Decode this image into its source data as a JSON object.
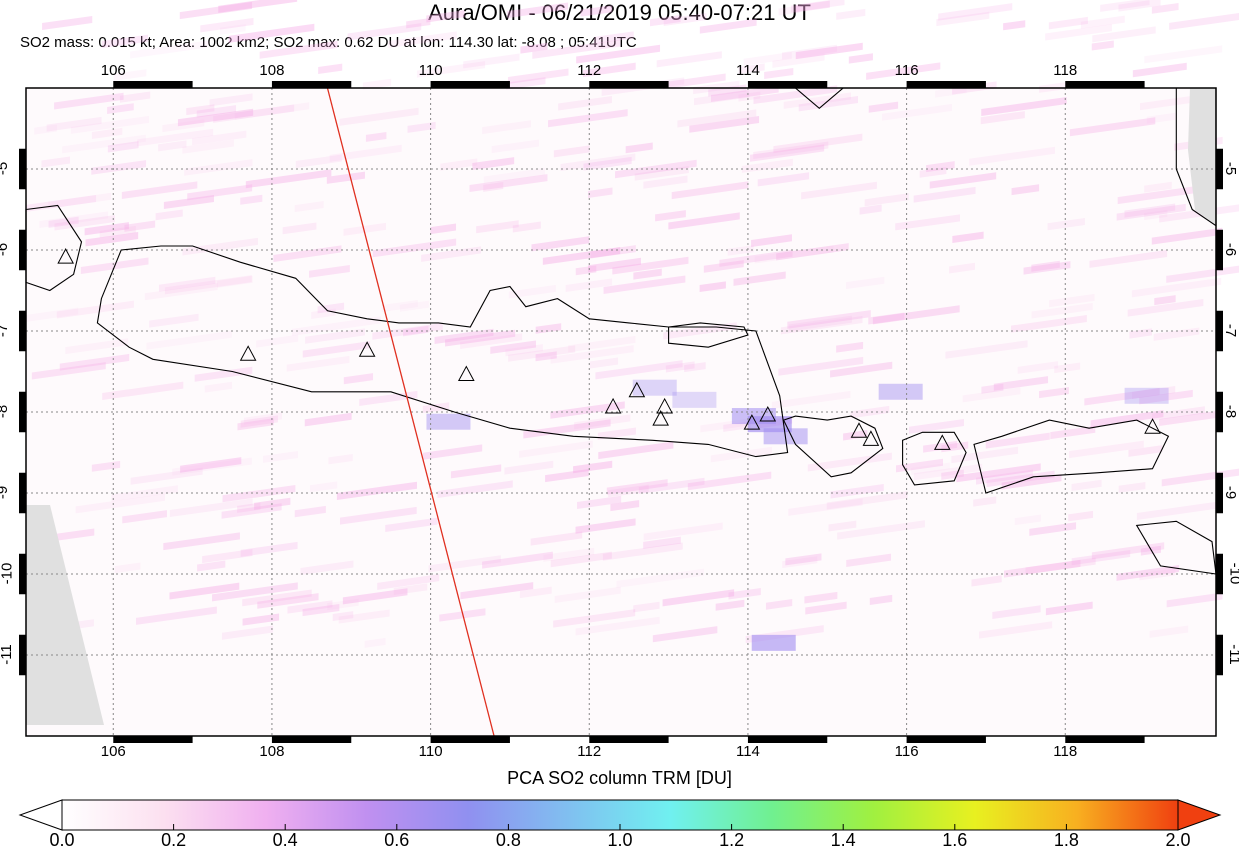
{
  "header": {
    "title": "Aura/OMI - 06/21/2019 05:40-07:21 UT",
    "stats": {
      "so2_mass": "SO2 mass: 0.015 kt; Area: 1002 km2; SO2 max: 0.62 DU at lon: 114.30 lat: -8.08 ; 05:41UTC"
    }
  },
  "map": {
    "lon_range": [
      104.9,
      119.9
    ],
    "lat_range": [
      -12.0,
      -4.0
    ],
    "lon_ticks": [
      "106",
      "108",
      "110",
      "112",
      "114",
      "116",
      "118"
    ],
    "lat_ticks": [
      "-5",
      "-6",
      "-7",
      "-8",
      "-9",
      "-10",
      "-11"
    ],
    "grid": "dotted",
    "orbit_track": {
      "color": "#e03020",
      "from": [
        108.7,
        -4.0
      ],
      "to": [
        110.8,
        -12.0
      ]
    },
    "volcano_markers": [
      [
        105.4,
        -6.1
      ],
      [
        107.7,
        -7.3
      ],
      [
        109.2,
        -7.25
      ],
      [
        110.45,
        -7.55
      ],
      [
        112.3,
        -7.95
      ],
      [
        112.6,
        -7.75
      ],
      [
        112.95,
        -7.95
      ],
      [
        112.9,
        -8.1
      ],
      [
        114.05,
        -8.15
      ],
      [
        114.25,
        -8.05
      ],
      [
        115.4,
        -8.25
      ],
      [
        115.55,
        -8.35
      ],
      [
        116.45,
        -8.4
      ],
      [
        119.1,
        -8.2
      ]
    ],
    "colors": {
      "coast": "#000000",
      "nodata": "#e0e0e0",
      "grid": "#888888"
    }
  },
  "colorbar": {
    "title": "PCA SO2 column TRM [DU]",
    "labels": [
      "0.0",
      "0.2",
      "0.4",
      "0.6",
      "0.8",
      "1.0",
      "1.2",
      "1.4",
      "1.6",
      "1.8",
      "2.0"
    ],
    "range": [
      0.0,
      2.0
    ],
    "stops": [
      "#ffffff",
      "#fce0f0",
      "#f0b0f0",
      "#c090f0",
      "#9090f0",
      "#80c0f0",
      "#70f0f0",
      "#70f090",
      "#a0f040",
      "#e8f020",
      "#f8b020",
      "#f04010"
    ]
  }
}
